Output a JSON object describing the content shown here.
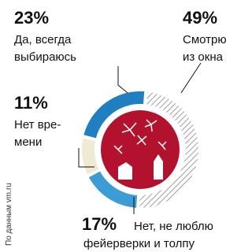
{
  "chart_data": {
    "type": "donut",
    "values": [
      49,
      17,
      11,
      23
    ],
    "value_labels": [
      "49%",
      "17%",
      "11%",
      "23%"
    ],
    "labels": [
      [
        "Смотрю",
        "из окна"
      ],
      [
        "Нет, не люблю",
        "фейерверки и толпу"
      ],
      [
        "Нет вре-",
        "мени"
      ],
      [
        "Да, всегда",
        "выбираюсь"
      ]
    ],
    "colors": [
      "hatch",
      "#3d9bd6",
      "#efead3",
      "#1f7fc1"
    ],
    "source": "По данным vm.ru"
  }
}
